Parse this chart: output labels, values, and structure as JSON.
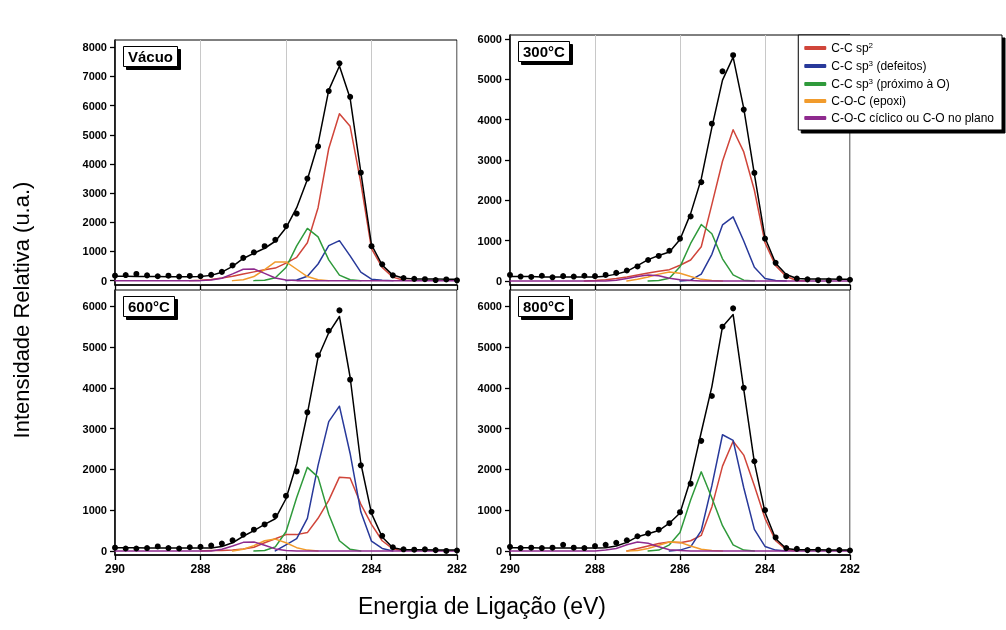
{
  "chart_data": [
    {
      "type": "line",
      "title": "Vácuo",
      "ylabel": "Intensidade Relativa (u.a.)",
      "xlim": [
        290,
        282
      ],
      "xticks": [
        290,
        288,
        286,
        284,
        282
      ],
      "ylim": [
        -150,
        8250
      ],
      "yticks": [
        0,
        1000,
        2000,
        3000,
        4000,
        5000,
        6000,
        7000,
        8000
      ],
      "grid": "x",
      "tick_labels": "y",
      "legend": false,
      "x": [
        290,
        289.75,
        289.5,
        289.25,
        289,
        288.75,
        288.5,
        288.25,
        288,
        287.75,
        287.5,
        287.25,
        287,
        286.75,
        286.5,
        286.25,
        286,
        285.75,
        285.5,
        285.25,
        285,
        284.75,
        284.5,
        284.25,
        284,
        283.75,
        283.5,
        283.25,
        283,
        282.75,
        282.5,
        282.25,
        282
      ],
      "series": [
        {
          "color": "#d0453a",
          "values": [
            null,
            null,
            null,
            null,
            null,
            null,
            null,
            0,
            10,
            40,
            90,
            150,
            230,
            300,
            370,
            430,
            600,
            800,
            1300,
            2500,
            4530,
            5720,
            5290,
            3350,
            1100,
            450,
            120,
            10,
            0,
            null,
            null,
            null,
            null
          ]
        },
        {
          "color": "#28399a",
          "values": [
            null,
            null,
            null,
            null,
            null,
            null,
            null,
            null,
            null,
            null,
            null,
            null,
            null,
            null,
            null,
            null,
            0,
            20,
            150,
            570,
            1200,
            1370,
            850,
            290,
            50,
            10,
            0,
            null,
            null,
            null,
            null,
            null,
            null
          ]
        },
        {
          "color": "#2f9a3b",
          "values": [
            null,
            null,
            null,
            null,
            null,
            null,
            null,
            null,
            null,
            null,
            null,
            null,
            null,
            0,
            10,
            100,
            450,
            1190,
            1790,
            1500,
            710,
            190,
            30,
            0,
            null,
            null,
            null,
            null,
            null,
            null,
            null,
            null,
            null
          ]
        },
        {
          "color": "#f19b2c",
          "values": [
            null,
            null,
            null,
            null,
            null,
            null,
            null,
            null,
            null,
            null,
            null,
            0,
            30,
            140,
            380,
            640,
            640,
            390,
            140,
            30,
            0,
            null,
            null,
            null,
            null,
            null,
            null,
            null,
            null,
            null,
            null,
            null,
            null
          ]
        },
        {
          "color": "#8e2a8e",
          "values": [
            0,
            0,
            0,
            0,
            0,
            0,
            0,
            0,
            0,
            20,
            80,
            230,
            390,
            400,
            250,
            90,
            20,
            0,
            0,
            0,
            0,
            0,
            0,
            0,
            0,
            0,
            0,
            0,
            0,
            0,
            0,
            0,
            0
          ]
        },
        {
          "color": "#000000",
          "values": [
            150,
            150,
            140,
            140,
            140,
            130,
            130,
            130,
            140,
            180,
            290,
            490,
            760,
            940,
            1110,
            1350,
            1810,
            2500,
            3470,
            4690,
            6530,
            7360,
            6250,
            3720,
            1230,
            530,
            190,
            80,
            60,
            60,
            60,
            50,
            50
          ]
        },
        {
          "type": "scatter",
          "marker": "circle",
          "color": "#000000",
          "values": [
            170,
            190,
            230,
            180,
            150,
            170,
            140,
            160,
            150,
            200,
            300,
            520,
            780,
            970,
            1180,
            1400,
            1870,
            2300,
            3500,
            4600,
            6500,
            7450,
            6300,
            3700,
            1180,
            560,
            180,
            90,
            60,
            50,
            20,
            40,
            10
          ]
        }
      ]
    },
    {
      "type": "line",
      "title": "300°C",
      "xlim": [
        290,
        282
      ],
      "xticks": [
        290,
        288,
        286,
        284,
        282
      ],
      "ylim": [
        -100,
        6100
      ],
      "yticks": [
        0,
        1000,
        2000,
        3000,
        4000,
        5000,
        6000
      ],
      "grid": "x",
      "tick_labels": "y",
      "legend": "top right",
      "x": [
        290,
        289.75,
        289.5,
        289.25,
        289,
        288.75,
        288.5,
        288.25,
        288,
        287.75,
        287.5,
        287.25,
        287,
        286.75,
        286.5,
        286.25,
        286,
        285.75,
        285.5,
        285.25,
        285,
        284.75,
        284.5,
        284.25,
        284,
        283.75,
        283.5,
        283.25,
        283,
        282.75,
        282.5,
        282.25,
        282
      ],
      "series": [
        {
          "name": "C-C sp$^{2}$",
          "color": "#d0453a",
          "values": [
            null,
            null,
            null,
            null,
            null,
            null,
            null,
            0,
            10,
            30,
            60,
            100,
            150,
            200,
            240,
            280,
            390,
            520,
            850,
            1900,
            2970,
            3750,
            3200,
            2250,
            950,
            380,
            110,
            10,
            0,
            null,
            null,
            null,
            null
          ]
        },
        {
          "name": "C-C sp$^{3}$ (defeitos)",
          "color": "#28399a",
          "values": [
            null,
            null,
            null,
            null,
            null,
            null,
            null,
            null,
            null,
            null,
            null,
            null,
            null,
            null,
            null,
            null,
            0,
            20,
            170,
            660,
            1390,
            1590,
            990,
            340,
            60,
            10,
            0,
            null,
            null,
            null,
            null,
            null,
            null
          ]
        },
        {
          "name": "C-C sp$^{3}$ (próximo à O)",
          "color": "#2f9a3b",
          "values": [
            null,
            null,
            null,
            null,
            null,
            null,
            null,
            null,
            null,
            null,
            null,
            null,
            null,
            0,
            10,
            70,
            350,
            930,
            1400,
            1170,
            550,
            150,
            20,
            0,
            null,
            null,
            null,
            null,
            null,
            null,
            null,
            null,
            null
          ]
        },
        {
          "name": "C-O-C (epoxi)",
          "color": "#f19b2c",
          "values": [
            null,
            null,
            null,
            null,
            null,
            null,
            null,
            null,
            null,
            null,
            null,
            0,
            40,
            100,
            170,
            220,
            190,
            110,
            40,
            10,
            0,
            null,
            null,
            null,
            null,
            null,
            null,
            null,
            null,
            null,
            null,
            null,
            null
          ]
        },
        {
          "name": "C-O-C cíclico ou C-O no plano",
          "color": "#8e2a8e",
          "values": [
            0,
            0,
            0,
            0,
            0,
            0,
            0,
            0,
            0,
            0,
            20,
            60,
            110,
            150,
            130,
            70,
            30,
            10,
            0,
            0,
            0,
            0,
            0,
            0,
            0,
            0,
            0,
            0,
            0,
            0,
            0,
            0,
            0
          ]
        },
        {
          "color": "#000000",
          "values": [
            110,
            110,
            110,
            100,
            100,
            100,
            100,
            100,
            100,
            120,
            170,
            240,
            380,
            530,
            630,
            720,
            1030,
            1670,
            2530,
            3810,
            4980,
            5550,
            4280,
            2650,
            1070,
            440,
            160,
            60,
            50,
            50,
            50,
            40,
            40
          ]
        },
        {
          "type": "scatter",
          "marker": "circle",
          "color": "#000000",
          "values": [
            150,
            110,
            100,
            130,
            90,
            120,
            110,
            130,
            120,
            150,
            200,
            260,
            360,
            520,
            620,
            750,
            1050,
            1600,
            2450,
            3900,
            5200,
            5600,
            4250,
            2680,
            1050,
            450,
            120,
            60,
            40,
            20,
            10,
            60,
            30
          ]
        }
      ]
    },
    {
      "type": "line",
      "title": "600°C",
      "xlabel": "Energia de Ligação (eV)",
      "xlim": [
        290,
        282
      ],
      "xticks": [
        290,
        288,
        286,
        284,
        282
      ],
      "ylim": [
        -100,
        6400
      ],
      "yticks": [
        0,
        1000,
        2000,
        3000,
        4000,
        5000,
        6000
      ],
      "grid": "x",
      "legend": false,
      "x": [
        290,
        289.75,
        289.5,
        289.25,
        289,
        288.75,
        288.5,
        288.25,
        288,
        287.75,
        287.5,
        287.25,
        287,
        286.75,
        286.5,
        286.25,
        286,
        285.75,
        285.5,
        285.25,
        285,
        284.75,
        284.5,
        284.25,
        284,
        283.75,
        283.5,
        283.25,
        283,
        282.75,
        282.5,
        282.25,
        282
      ],
      "series": [
        {
          "color": "#d0453a",
          "values": [
            null,
            null,
            null,
            null,
            null,
            null,
            null,
            null,
            0,
            10,
            10,
            20,
            50,
            90,
            200,
            300,
            400,
            400,
            450,
            800,
            1240,
            1810,
            1790,
            1150,
            650,
            250,
            50,
            0,
            null,
            null,
            null,
            null,
            null
          ]
        },
        {
          "color": "#28399a",
          "values": [
            null,
            null,
            null,
            null,
            null,
            null,
            null,
            null,
            null,
            null,
            null,
            null,
            null,
            null,
            null,
            0,
            150,
            300,
            800,
            2100,
            3170,
            3550,
            2390,
            960,
            240,
            60,
            0,
            null,
            null,
            null,
            null,
            null,
            null
          ]
        },
        {
          "color": "#2f9a3b",
          "values": [
            null,
            null,
            null,
            null,
            null,
            null,
            null,
            null,
            null,
            null,
            null,
            null,
            null,
            0,
            10,
            100,
            470,
            1310,
            2050,
            1810,
            900,
            250,
            40,
            0,
            null,
            null,
            null,
            null,
            null,
            null,
            null,
            null,
            null
          ]
        },
        {
          "color": "#f19b2c",
          "values": [
            null,
            null,
            null,
            null,
            null,
            null,
            null,
            null,
            null,
            null,
            null,
            0,
            40,
            130,
            250,
            290,
            200,
            80,
            20,
            0,
            null,
            null,
            null,
            null,
            null,
            null,
            null,
            null,
            null,
            null,
            null,
            null,
            null
          ]
        },
        {
          "color": "#8e2a8e",
          "values": [
            0,
            0,
            0,
            0,
            0,
            0,
            0,
            0,
            0,
            0,
            40,
            120,
            210,
            220,
            140,
            50,
            10,
            0,
            0,
            0,
            0,
            0,
            0,
            0,
            0,
            0,
            0,
            0,
            0,
            0,
            0,
            0,
            0
          ]
        },
        {
          "color": "#000000",
          "values": [
            80,
            80,
            80,
            70,
            70,
            70,
            70,
            70,
            70,
            70,
            110,
            200,
            360,
            500,
            650,
            790,
            1280,
            2140,
            3370,
            4750,
            5350,
            5750,
            4260,
            2150,
            920,
            340,
            80,
            30,
            30,
            30,
            20,
            20,
            20
          ]
        },
        {
          "type": "scatter",
          "marker": "circle",
          "color": "#000000",
          "values": [
            80,
            60,
            60,
            70,
            110,
            70,
            60,
            90,
            100,
            130,
            180,
            260,
            400,
            520,
            650,
            860,
            1350,
            1950,
            3400,
            4800,
            5400,
            5900,
            4200,
            2100,
            960,
            370,
            90,
            40,
            30,
            40,
            20,
            0,
            10
          ]
        }
      ]
    },
    {
      "type": "line",
      "title": "800°C",
      "xlim": [
        290,
        282
      ],
      "xticks": [
        290,
        288,
        286,
        284,
        282
      ],
      "ylim": [
        -100,
        6400
      ],
      "yticks": [
        0,
        1000,
        2000,
        3000,
        4000,
        5000,
        6000
      ],
      "grid": "x",
      "legend": false,
      "x": [
        290,
        289.75,
        289.5,
        289.25,
        289,
        288.75,
        288.5,
        288.25,
        288,
        287.75,
        287.5,
        287.25,
        287,
        286.75,
        286.5,
        286.25,
        286,
        285.75,
        285.5,
        285.25,
        285,
        284.75,
        284.5,
        284.25,
        284,
        283.75,
        283.5,
        283.25,
        283,
        282.75,
        282.5,
        282.25,
        282
      ],
      "series": [
        {
          "color": "#d0453a",
          "values": [
            null,
            null,
            null,
            null,
            null,
            null,
            null,
            null,
            null,
            null,
            null,
            0,
            60,
            120,
            180,
            220,
            200,
            250,
            380,
            1080,
            2080,
            2690,
            2350,
            1600,
            800,
            250,
            30,
            0,
            null,
            null,
            null,
            null,
            null
          ]
        },
        {
          "color": "#28399a",
          "values": [
            null,
            null,
            null,
            null,
            null,
            null,
            null,
            null,
            null,
            null,
            null,
            null,
            null,
            null,
            null,
            0,
            20,
            100,
            500,
            1600,
            2850,
            2710,
            1550,
            530,
            110,
            20,
            0,
            null,
            null,
            null,
            null,
            null,
            null
          ]
        },
        {
          "color": "#2f9a3b",
          "values": [
            null,
            null,
            null,
            null,
            null,
            null,
            null,
            null,
            null,
            null,
            null,
            null,
            null,
            0,
            20,
            150,
            450,
            1250,
            1940,
            1300,
            620,
            150,
            20,
            0,
            null,
            null,
            null,
            null,
            null,
            null,
            null,
            null,
            null
          ]
        },
        {
          "color": "#f19b2c",
          "values": [
            null,
            null,
            null,
            null,
            null,
            null,
            null,
            null,
            null,
            null,
            null,
            0,
            10,
            60,
            140,
            220,
            210,
            120,
            40,
            10,
            0,
            null,
            null,
            null,
            null,
            null,
            null,
            null,
            null,
            null,
            null,
            null,
            null
          ]
        },
        {
          "color": "#8e2a8e",
          "values": [
            0,
            0,
            0,
            0,
            0,
            0,
            0,
            0,
            0,
            20,
            60,
            150,
            220,
            190,
            100,
            30,
            10,
            0,
            0,
            0,
            0,
            0,
            0,
            0,
            0,
            0,
            0,
            0,
            0,
            0,
            0,
            0,
            0
          ]
        },
        {
          "color": "#000000",
          "values": [
            80,
            80,
            80,
            70,
            70,
            70,
            70,
            70,
            70,
            80,
            120,
            210,
            350,
            420,
            500,
            680,
            930,
            1760,
            2910,
            4030,
            5500,
            5800,
            3960,
            2170,
            950,
            300,
            60,
            30,
            30,
            30,
            20,
            20,
            20
          ]
        },
        {
          "type": "scatter",
          "marker": "circle",
          "color": "#000000",
          "values": [
            100,
            70,
            80,
            70,
            80,
            150,
            80,
            70,
            120,
            150,
            200,
            260,
            360,
            430,
            520,
            680,
            950,
            1650,
            2700,
            3800,
            5500,
            5950,
            4000,
            2200,
            1000,
            330,
            70,
            50,
            20,
            30,
            10,
            20,
            10
          ]
        }
      ]
    }
  ]
}
